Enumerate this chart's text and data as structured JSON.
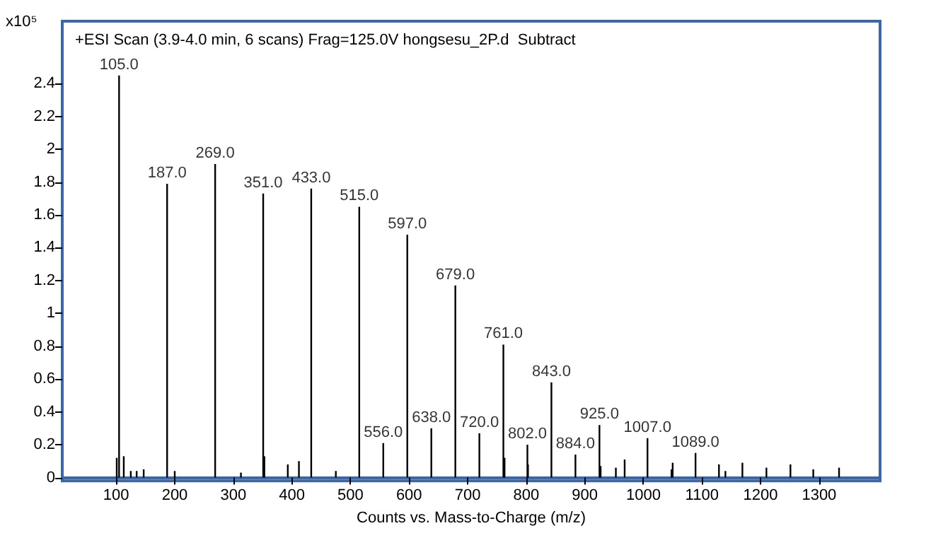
{
  "chart_data": {
    "type": "bar",
    "title": "+ESI Scan (3.9-4.0 min, 6 scans) Frag=125.0V hongsesu_2P.d  Subtract",
    "xlabel": "Counts vs. Mass-to-Charge (m/z)",
    "ylabel": "x10⁵",
    "x": [
      101,
      105,
      113,
      125,
      135,
      147,
      187,
      200,
      269,
      313,
      351,
      353,
      393,
      412,
      433,
      475,
      515,
      556,
      597,
      638,
      679,
      720,
      761,
      763,
      802,
      803,
      843,
      884,
      925,
      927,
      953,
      968,
      1007,
      1048,
      1050,
      1089,
      1129,
      1140,
      1169,
      1210,
      1251,
      1290,
      1334
    ],
    "values": [
      0.12,
      2.45,
      0.13,
      0.04,
      0.04,
      0.05,
      1.79,
      0.04,
      1.91,
      0.03,
      1.73,
      0.13,
      0.08,
      0.1,
      1.76,
      0.04,
      1.65,
      0.21,
      1.48,
      0.3,
      1.17,
      0.27,
      0.81,
      0.12,
      0.2,
      0.08,
      0.58,
      0.14,
      0.32,
      0.07,
      0.06,
      0.11,
      0.24,
      0.05,
      0.09,
      0.15,
      0.08,
      0.04,
      0.09,
      0.06,
      0.08,
      0.05,
      0.06
    ],
    "annotations": [
      {
        "text": "105.0",
        "x": 105,
        "y": 2.45
      },
      {
        "text": "187.0",
        "x": 187,
        "y": 1.79
      },
      {
        "text": "269.0",
        "x": 269,
        "y": 1.91
      },
      {
        "text": "351.0",
        "x": 351,
        "y": 1.73
      },
      {
        "text": "433.0",
        "x": 433,
        "y": 1.76
      },
      {
        "text": "515.0",
        "x": 515,
        "y": 1.65
      },
      {
        "text": "556.0",
        "x": 556,
        "y": 0.21
      },
      {
        "text": "597.0",
        "x": 597,
        "y": 1.48
      },
      {
        "text": "638.0",
        "x": 638,
        "y": 0.3
      },
      {
        "text": "679.0",
        "x": 679,
        "y": 1.17
      },
      {
        "text": "720.0",
        "x": 720,
        "y": 0.27
      },
      {
        "text": "761.0",
        "x": 761,
        "y": 0.81
      },
      {
        "text": "802.0",
        "x": 802,
        "y": 0.2
      },
      {
        "text": "843.0",
        "x": 843,
        "y": 0.58
      },
      {
        "text": "884.0",
        "x": 884,
        "y": 0.14
      },
      {
        "text": "925.0",
        "x": 925,
        "y": 0.32
      },
      {
        "text": "1007.0",
        "x": 1007,
        "y": 0.24
      },
      {
        "text": "1089.0",
        "x": 1089,
        "y": 0.15
      }
    ],
    "color": "#000000",
    "xlim": [
      8,
      1404
    ],
    "xticks": [
      100,
      200,
      300,
      400,
      500,
      600,
      700,
      800,
      900,
      1000,
      1100,
      1200,
      1300
    ],
    "ylim": [
      -0.02,
      2.78
    ],
    "yticks": [
      0,
      0.2,
      0.4,
      0.6,
      0.8,
      1,
      1.2,
      1.4,
      1.6,
      1.8,
      2,
      2.2,
      2.4
    ]
  }
}
